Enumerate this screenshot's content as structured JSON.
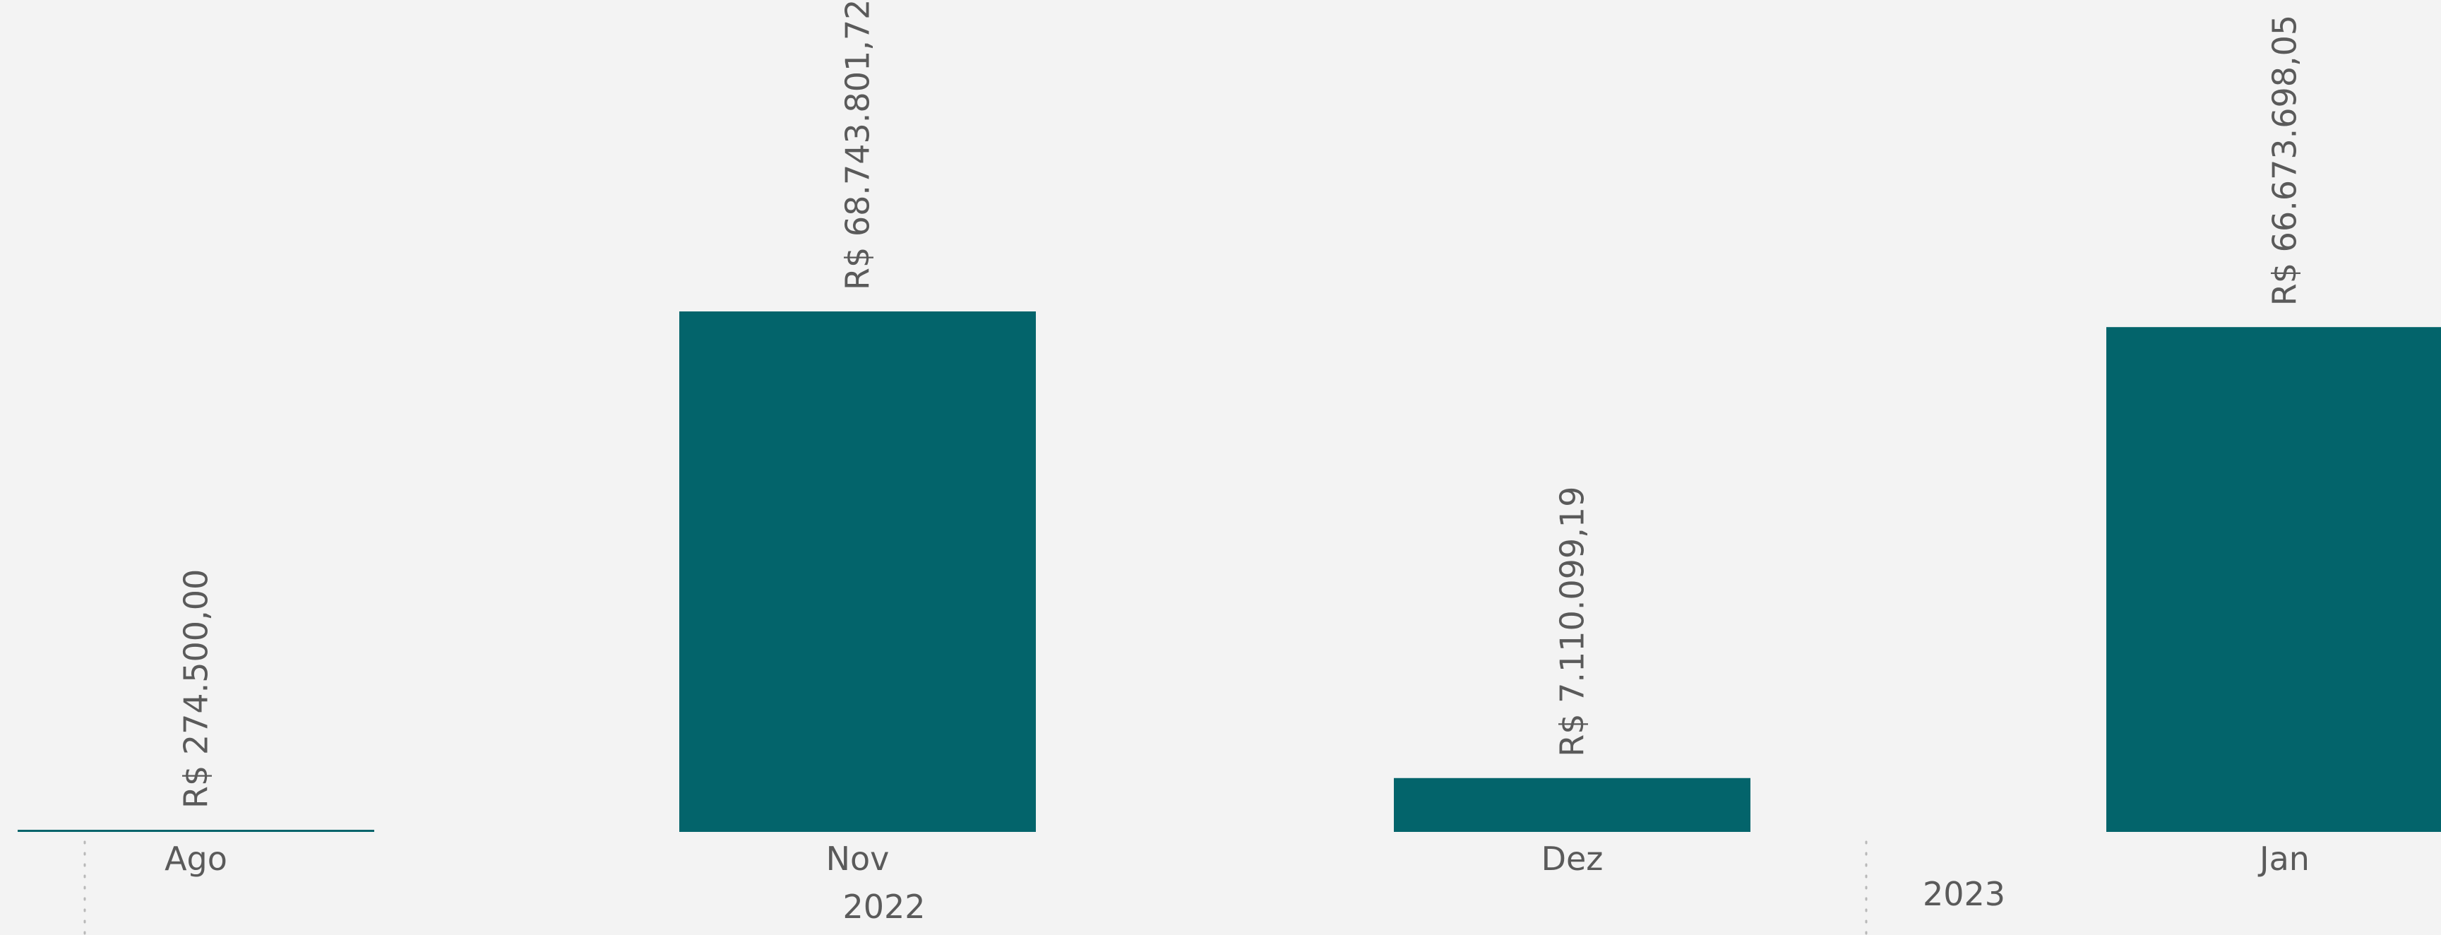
{
  "chart_data": {
    "type": "bar",
    "categories": [
      "Ago",
      "Nov",
      "Dez",
      "Jan"
    ],
    "years": [
      {
        "label": "2022",
        "categories": [
          "Ago",
          "Nov",
          "Dez"
        ]
      },
      {
        "label": "2023",
        "categories": [
          "Jan"
        ]
      }
    ],
    "values": [
      274500.0,
      68743801.72,
      7110099.19,
      66673698.05
    ],
    "data_labels": [
      "R$ 274.500,00",
      "R$ 68.743.801,72",
      "R$ 7.110.099,19",
      "R$ 66.673.698,05"
    ],
    "title": "",
    "xlabel": "",
    "ylabel": "",
    "ylim": [
      0,
      68743801.72
    ],
    "grid": false,
    "legend": "none"
  },
  "colors": {
    "bar": "#03646b",
    "text": "#5a5a5a",
    "background": "#f3f3f3",
    "divider": "#b8b8b8"
  }
}
